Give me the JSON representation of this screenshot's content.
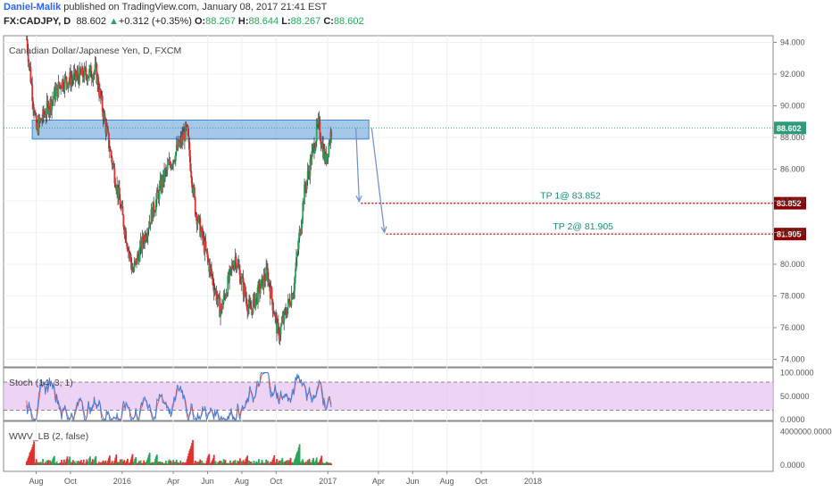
{
  "header": {
    "author": "Daniel-Malik",
    "published": " published on TradingView.com, January 08, 2017 21:41 EST",
    "symbol": "FX:CADJPY, D",
    "last": "88.602",
    "change_arrow": "▲",
    "change": "+0.312 (+0.35%)",
    "o_label": "O:",
    "o": "88.267",
    "h_label": "H:",
    "h": "88.644",
    "l_label": "L:",
    "l": "88.267",
    "c_label": "C:",
    "c": "88.602"
  },
  "colors": {
    "up": "#26a65b",
    "down": "#e0302f",
    "zone": "#5b9bd5",
    "stoch_band": "#e8c6f0",
    "tp_line": "#c0141a",
    "price_tag": "#2e9c7a",
    "tp_tag": "#8b0000",
    "arrow": "#6d8fc4"
  },
  "chart_data": [
    {
      "type": "candlestick",
      "title": "Canadian Dollar/Japanese Yen, D, FXCM",
      "x_ticks": [
        "Aug",
        "Oct",
        "2016",
        "Apr",
        "Jun",
        "Aug",
        "Oct",
        "2017",
        "Apr",
        "Jun",
        "Aug",
        "Oct",
        "2018"
      ],
      "y_ticks": [
        "94.000",
        "92.000",
        "90.000",
        "88.000",
        "86.000",
        "84.000",
        "82.000",
        "80.000",
        "78.000",
        "76.000",
        "74.000"
      ],
      "ylim": [
        74,
        94.2
      ],
      "last_price": 88.602,
      "last_price_label": "88.602",
      "resistance_zone": [
        87.9,
        89.1
      ],
      "key_points": [
        {
          "x": "2015-07-15",
          "y": 94.2
        },
        {
          "x": "2015-08-01",
          "y": 88.5
        },
        {
          "x": "2015-09-15",
          "y": 91.5
        },
        {
          "x": "2015-11-15",
          "y": 92.2
        },
        {
          "x": "2015-12-01",
          "y": 89.0
        },
        {
          "x": "2016-01-20",
          "y": 79.5
        },
        {
          "x": "2016-03-15",
          "y": 85.5
        },
        {
          "x": "2016-04-25",
          "y": 88.5
        },
        {
          "x": "2016-05-10",
          "y": 83.5
        },
        {
          "x": "2016-06-24",
          "y": 77.0
        },
        {
          "x": "2016-07-20",
          "y": 80.5
        },
        {
          "x": "2016-08-15",
          "y": 77.0
        },
        {
          "x": "2016-09-15",
          "y": 79.5
        },
        {
          "x": "2016-10-05",
          "y": 75.5
        },
        {
          "x": "2016-11-01",
          "y": 78.5
        },
        {
          "x": "2016-11-20",
          "y": 84.5
        },
        {
          "x": "2016-12-15",
          "y": 88.8
        },
        {
          "x": "2016-12-28",
          "y": 86.5
        },
        {
          "x": "2017-01-08",
          "y": 88.6
        }
      ],
      "targets": [
        {
          "label": "TP 1@ 83.852",
          "price": 83.852,
          "tag": "83.852",
          "from_date": "2017-03-01"
        },
        {
          "label": "TP 2@ 81.905",
          "price": 81.905,
          "tag": "81.905",
          "from_date": "2017-04-15"
        }
      ]
    },
    {
      "type": "line",
      "title": "Stoch (14, 3, 1)",
      "y_ticks": [
        "100.0000",
        "50.0000",
        "0.0000"
      ],
      "ylim": [
        0,
        100
      ],
      "levels": [
        80,
        20
      ]
    },
    {
      "type": "bar",
      "title": "WWV_LB (2, false)",
      "y_ticks": [
        "4000000.0000",
        "0.0000"
      ],
      "ylim": [
        0,
        4000000
      ]
    }
  ]
}
